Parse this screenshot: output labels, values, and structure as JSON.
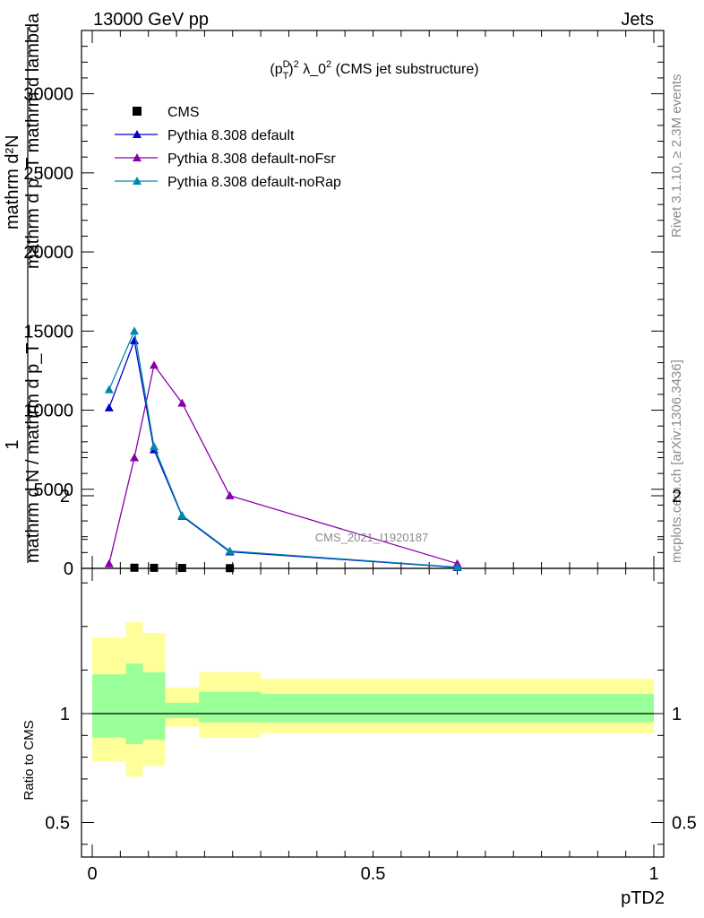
{
  "header": {
    "left": "13000 GeV pp",
    "right": "Jets"
  },
  "side_labels": {
    "rivet": "Rivet 3.1.10, ≥ 2.3M events",
    "mcplots": "mcplots.cern.ch [arXiv:1306.3436]"
  },
  "chart_data": {
    "type": "line",
    "title": "(p_T^D)^2 λ_0^2 (CMS jet substructure)",
    "title_parts": {
      "a": "(p",
      "sup1": "D",
      "sub1": "T",
      "b": ")",
      "sup2": "2",
      "c": " λ_0",
      "sup3": "2",
      "d": " (CMS jet substructure)"
    },
    "watermark": "CMS_2021_I1920187",
    "xlabel": "pTD2",
    "ylabel_top": {
      "numerator": "1",
      "denominator": "mathrm d N / mathrm d p_T",
      "num2": "mathrm d²N",
      "den2": "mathrm d p_T mathrm d lambda"
    },
    "ratio_ylabel": "Ratio to CMS",
    "xlim": [
      -0.02,
      1.02
    ],
    "ylim": [
      0,
      34000
    ],
    "ratio_ylim": [
      0.35,
      2.3
    ],
    "x_ticks": [
      0,
      0.5,
      1
    ],
    "x_tick_labels": [
      "0",
      "0.5",
      "1"
    ],
    "y_ticks": [
      0,
      5000,
      10000,
      15000,
      20000,
      25000,
      30000
    ],
    "y_tick_labels": [
      "0",
      "5000",
      "10000",
      "15000",
      "20000",
      "25000",
      "30000"
    ],
    "ratio_ticks": [
      0.5,
      1,
      2
    ],
    "ratio_tick_labels": [
      "0.5",
      "1",
      "2"
    ],
    "legend_position": "top-left",
    "series": [
      {
        "name": "CMS",
        "color": "#000000",
        "marker": "square",
        "x": [
          0.075,
          0.11,
          0.16,
          0.245
        ],
        "y": [
          40,
          35,
          25,
          15
        ]
      },
      {
        "name": "Pythia 8.308 default",
        "color": "#0000cc",
        "marker": "triangle",
        "x": [
          0.03,
          0.075,
          0.11,
          0.16,
          0.245,
          0.65
        ],
        "y": [
          10150,
          14400,
          7500,
          3300,
          1050,
          60
        ]
      },
      {
        "name": "Pythia 8.308 default-noFsr",
        "color": "#8800aa",
        "marker": "triangle",
        "x": [
          0.03,
          0.075,
          0.11,
          0.16,
          0.245,
          0.65
        ],
        "y": [
          300,
          7000,
          12850,
          10450,
          4600,
          300
        ]
      },
      {
        "name": "Pythia 8.308 default-noRap",
        "color": "#0088aa",
        "marker": "triangle",
        "x": [
          0.03,
          0.075,
          0.11,
          0.16,
          0.245,
          0.65
        ],
        "y": [
          11300,
          15000,
          7700,
          3350,
          1100,
          80
        ]
      }
    ],
    "ratio_bands": [
      {
        "x0": 0.0,
        "x1": 0.06,
        "inner": [
          0.89,
          1.18
        ],
        "outer": [
          0.78,
          1.35
        ]
      },
      {
        "x0": 0.06,
        "x1": 0.09,
        "inner": [
          0.86,
          1.23
        ],
        "outer": [
          0.71,
          1.42
        ]
      },
      {
        "x0": 0.09,
        "x1": 0.13,
        "inner": [
          0.88,
          1.19
        ],
        "outer": [
          0.76,
          1.37
        ]
      },
      {
        "x0": 0.13,
        "x1": 0.19,
        "inner": [
          0.98,
          1.05
        ],
        "outer": [
          0.94,
          1.12
        ]
      },
      {
        "x0": 0.19,
        "x1": 0.3,
        "inner": [
          0.96,
          1.1
        ],
        "outer": [
          0.89,
          1.19
        ]
      },
      {
        "x0": 0.3,
        "x1": 1.0,
        "inner": [
          0.96,
          1.09
        ],
        "outer": [
          0.91,
          1.16
        ]
      }
    ]
  }
}
